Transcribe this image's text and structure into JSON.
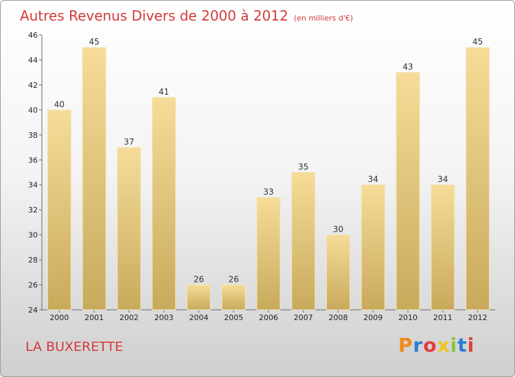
{
  "chart_data": {
    "type": "bar",
    "title": "Autres Revenus Divers de 2000 à 2012",
    "subtitle": "(en milliers d'€)",
    "xlabel": "",
    "ylabel": "",
    "categories": [
      "2000",
      "2001",
      "2002",
      "2003",
      "2004",
      "2005",
      "2006",
      "2007",
      "2008",
      "2009",
      "2010",
      "2011",
      "2012"
    ],
    "values": [
      40,
      45,
      37,
      41,
      26,
      26,
      33,
      35,
      30,
      34,
      43,
      34,
      45
    ],
    "ylim": [
      24,
      46
    ],
    "yticks": [
      24,
      26,
      28,
      30,
      32,
      34,
      36,
      38,
      40,
      42,
      44,
      46
    ],
    "grid": false,
    "bar_color": "#e0c57c"
  },
  "footer": {
    "location": "LA BUXERETTE",
    "logo_text": "Proxiti",
    "logo_colors": [
      "#f08a1c",
      "#2a7fd4",
      "#e23d3d",
      "#f0c419",
      "#8cc43c",
      "#2a7fd4",
      "#e23d3d"
    ]
  }
}
